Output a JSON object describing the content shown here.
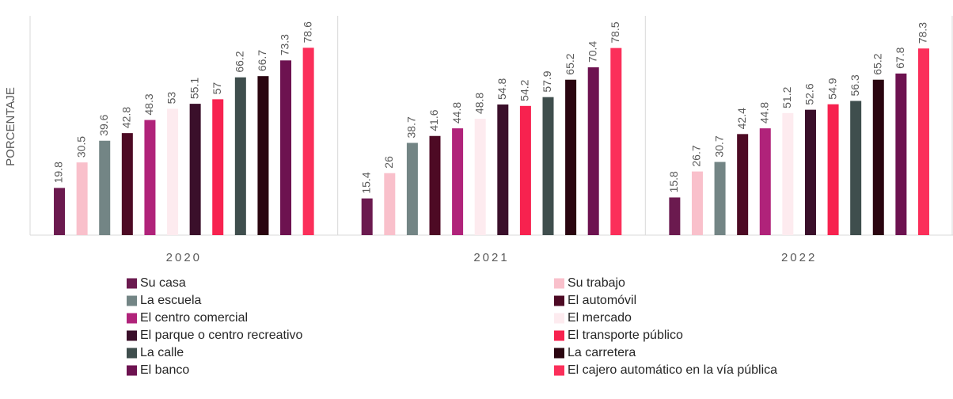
{
  "chart_data": {
    "type": "bar",
    "y_label": "PORCENTAJE",
    "categories": [
      "2020",
      "2021",
      "2022"
    ],
    "ylim": [
      0,
      92
    ],
    "series": [
      {
        "name": "Su casa",
        "color": "#6b1a4f",
        "values": [
          19.8,
          15.4,
          15.8
        ]
      },
      {
        "name": "Su trabajo",
        "color": "#f9c0cb",
        "values": [
          30.5,
          26,
          26.7
        ]
      },
      {
        "name": "La escuela",
        "color": "#738585",
        "values": [
          39.6,
          38.7,
          30.7
        ]
      },
      {
        "name": "El automóvil",
        "color": "#4d0a24",
        "values": [
          42.8,
          41.6,
          42.4
        ]
      },
      {
        "name": "El centro comercial",
        "color": "#b0237a",
        "values": [
          48.3,
          44.8,
          44.8
        ]
      },
      {
        "name": "El mercado",
        "color": "#fdebef",
        "values": [
          53,
          48.8,
          51.2
        ]
      },
      {
        "name": "El parque o centro recreativo",
        "color": "#3a0f2a",
        "values": [
          55.1,
          54.8,
          52.6
        ]
      },
      {
        "name": "El transporte público",
        "color": "#f7224f",
        "values": [
          57,
          54.2,
          54.9
        ]
      },
      {
        "name": "La calle",
        "color": "#3f4e4d",
        "values": [
          66.2,
          57.9,
          56.3
        ]
      },
      {
        "name": "La carretera",
        "color": "#2a0510",
        "values": [
          66.7,
          65.2,
          65.2
        ]
      },
      {
        "name": "El banco",
        "color": "#6d1250",
        "values": [
          73.3,
          70.4,
          67.8
        ]
      },
      {
        "name": "El cajero automático en la vía pública",
        "color": "#fb2f5a",
        "values": [
          78.6,
          78.5,
          78.3
        ]
      }
    ]
  }
}
